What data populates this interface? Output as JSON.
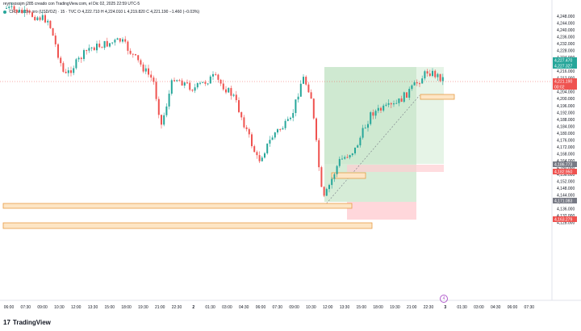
{
  "header": {
    "text": "reymsossjm j285 creado con TradingView.com, el Dic 02, 2025 22:59 UTC-5"
  },
  "legend": {
    "symbol": "CFDs sobre oro (USD/OZ) · 15 · TVC",
    "ohlc": "O 4,222.710  H 4,224.010  L 4,219.820  C 4,221.190  −1.460 (−0.03%)"
  },
  "price_axis": {
    "ticks": [
      "4,248.000",
      "4,244.000",
      "4,240.000",
      "4,236.000",
      "4,232.000",
      "4,228.000",
      "4,224.000",
      "4,220.000",
      "4,216.000",
      "4,212.000",
      "4,208.000",
      "4,204.000",
      "4,200.000",
      "4,196.000",
      "4,192.000",
      "4,188.000",
      "4,184.000",
      "4,180.000",
      "4,176.000",
      "4,172.000",
      "4,168.000",
      "4,164.000",
      "4,160.000",
      "4,156.000",
      "4,152.000",
      "4,148.000",
      "4,144.000",
      "4,140.000",
      "4,136.000",
      "4,132.000",
      "4,128.000"
    ],
    "tags": [
      {
        "label": "4,227.470",
        "color": "#26a69a"
      },
      {
        "label": "4,227.327",
        "color": "#26a69a"
      },
      {
        "label": "4,221.190",
        "color": "#ef5350"
      },
      {
        "label": "00:02",
        "color": "#ef5350"
      },
      {
        "label": "4,186.773",
        "color": "#787b86"
      },
      {
        "label": "4,182.950",
        "color": "#ef5350"
      },
      {
        "label": "4,171.083",
        "color": "#787b86"
      },
      {
        "label": "4,163.279",
        "color": "#ef5350"
      }
    ]
  },
  "time_axis": {
    "ticks": [
      "06:00",
      "07:30",
      "09:00",
      "10:30",
      "12:00",
      "13:30",
      "15:00",
      "18:00",
      "19:30",
      "21:00",
      "22:30",
      "2",
      "01:30",
      "03:00",
      "04:30",
      "06:00",
      "07:30",
      "09:00",
      "10:30",
      "12:00",
      "13:30",
      "15:00",
      "18:00",
      "19:30",
      "21:00",
      "22:30",
      "3",
      "01:30",
      "03:00",
      "04:30",
      "06:00",
      "07:30"
    ]
  },
  "footer": {
    "brand": "TradingView"
  },
  "icons": {
    "logo": "tradingview-logo-icon",
    "event": "event-marker-icon"
  },
  "colors": {
    "up": "#26a69a",
    "down": "#ef5350",
    "zone": "#f5a142"
  }
}
